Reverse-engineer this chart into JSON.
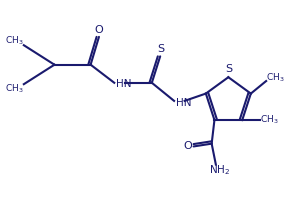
{
  "bg_color": "#ffffff",
  "line_color": "#1a1a6e",
  "line_width": 1.5,
  "figsize": [
    2.87,
    2.24
  ],
  "dpi": 100,
  "xlim": [
    0,
    10
  ],
  "ylim": [
    1.5,
    9.5
  ]
}
